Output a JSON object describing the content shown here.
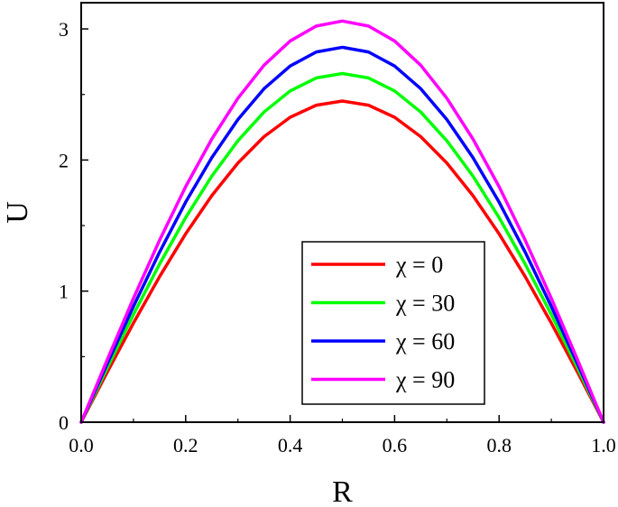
{
  "chart_data": {
    "type": "line",
    "xlabel": "R",
    "ylabel": "U",
    "xlim": [
      0.0,
      1.0
    ],
    "ylim": [
      0,
      3.2
    ],
    "x_ticks": [
      "0.0",
      "0.2",
      "0.4",
      "0.6",
      "0.8",
      "1.0"
    ],
    "y_ticks": [
      "0",
      "1",
      "2",
      "3"
    ],
    "grid": false,
    "legend_position": "center-right",
    "series": [
      {
        "name": "χ = 0",
        "color": "#ff0000",
        "x": [
          0.0,
          0.05,
          0.1,
          0.15,
          0.2,
          0.25,
          0.3,
          0.35,
          0.4,
          0.45,
          0.5,
          0.55,
          0.6,
          0.65,
          0.7,
          0.75,
          0.8,
          0.85,
          0.9,
          0.95,
          1.0
        ],
        "y": [
          0.0,
          0.383,
          0.756,
          1.11,
          1.437,
          1.728,
          1.977,
          2.178,
          2.326,
          2.418,
          2.45,
          2.418,
          2.326,
          2.178,
          1.977,
          1.728,
          1.437,
          1.11,
          0.756,
          0.383,
          0.0
        ]
      },
      {
        "name": "χ = 30",
        "color": "#00ff00",
        "x": [
          0.0,
          0.05,
          0.1,
          0.15,
          0.2,
          0.25,
          0.3,
          0.35,
          0.4,
          0.45,
          0.5,
          0.55,
          0.6,
          0.65,
          0.7,
          0.75,
          0.8,
          0.85,
          0.9,
          0.95,
          1.0
        ],
        "y": [
          0.0,
          0.416,
          0.821,
          1.206,
          1.561,
          1.877,
          2.147,
          2.366,
          2.527,
          2.626,
          2.66,
          2.626,
          2.527,
          2.366,
          2.147,
          1.877,
          1.561,
          1.206,
          0.821,
          0.416,
          0.0
        ]
      },
      {
        "name": "χ = 60",
        "color": "#0000ff",
        "x": [
          0.0,
          0.05,
          0.1,
          0.15,
          0.2,
          0.25,
          0.3,
          0.35,
          0.4,
          0.45,
          0.5,
          0.55,
          0.6,
          0.65,
          0.7,
          0.75,
          0.8,
          0.85,
          0.9,
          0.95,
          1.0
        ],
        "y": [
          0.0,
          0.447,
          0.883,
          1.297,
          1.679,
          2.018,
          2.309,
          2.544,
          2.717,
          2.824,
          2.86,
          2.824,
          2.717,
          2.544,
          2.309,
          2.018,
          1.679,
          1.297,
          0.883,
          0.447,
          0.0
        ]
      },
      {
        "name": "χ = 90",
        "color": "#ff00ff",
        "x": [
          0.0,
          0.05,
          0.1,
          0.15,
          0.2,
          0.25,
          0.3,
          0.35,
          0.4,
          0.45,
          0.5,
          0.55,
          0.6,
          0.65,
          0.7,
          0.75,
          0.8,
          0.85,
          0.9,
          0.95,
          1.0
        ],
        "y": [
          0.0,
          0.478,
          0.945,
          1.388,
          1.797,
          2.16,
          2.471,
          2.723,
          2.908,
          3.022,
          3.06,
          3.022,
          2.908,
          2.723,
          2.471,
          2.16,
          1.797,
          1.388,
          0.945,
          0.478,
          0.0
        ]
      }
    ]
  }
}
